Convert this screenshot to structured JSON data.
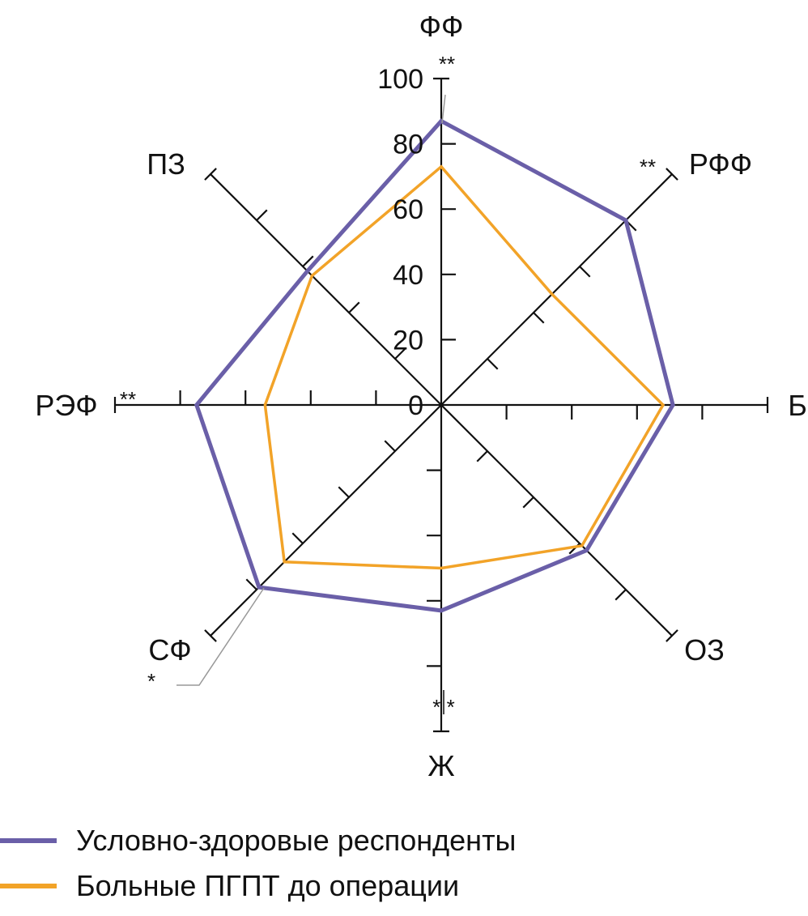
{
  "chart_data": {
    "type": "radar",
    "axes": [
      "ФФ",
      "РФФ",
      "Б",
      "ОЗ",
      "Ж",
      "СФ",
      "РЭФ",
      "ПЗ"
    ],
    "axis_significance": [
      "**",
      "**",
      "",
      "",
      "* *",
      "*",
      "**",
      ""
    ],
    "scale": {
      "min": 0,
      "max": 100,
      "ticks": [
        0,
        20,
        40,
        60,
        80,
        100
      ]
    },
    "series": [
      {
        "name": "Условно-здоровые респонденты",
        "color": "#6a5fa8",
        "values": [
          87,
          80,
          71,
          63,
          63,
          79,
          75,
          58
        ]
      },
      {
        "name": "Больные ПГПТ до операции",
        "color": "#f2a328",
        "values": [
          73,
          48,
          68,
          61,
          50,
          68,
          54,
          56
        ]
      }
    ]
  }
}
